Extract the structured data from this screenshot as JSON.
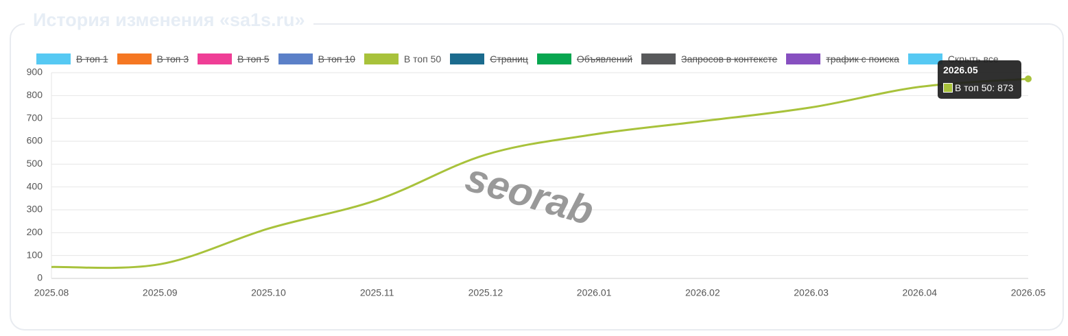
{
  "chart_data": {
    "type": "line",
    "title": "История изменения «sa1s.ru»",
    "categories": [
      "2025.08",
      "2025.09",
      "2025.10",
      "2025.11",
      "2025.12",
      "2026.01",
      "2026.02",
      "2026.03",
      "2026.04",
      "2026.05"
    ],
    "series": [
      {
        "name": "В топ 1",
        "color": "#56c9f3",
        "visible": false
      },
      {
        "name": "В топ 3",
        "color": "#f57722",
        "visible": false
      },
      {
        "name": "В топ 5",
        "color": "#ef3e96",
        "visible": false
      },
      {
        "name": "В топ 10",
        "color": "#5b80c8",
        "visible": false
      },
      {
        "name": "В топ 50",
        "color": "#a8c23b",
        "visible": true,
        "values": [
          50,
          62,
          218,
          343,
          541,
          630,
          688,
          748,
          838,
          873
        ]
      },
      {
        "name": "Страниц",
        "color": "#1b6b8e",
        "visible": false
      },
      {
        "name": "Объявлений",
        "color": "#08a650",
        "visible": false
      },
      {
        "name": "Запросов в контексте",
        "color": "#58595b",
        "visible": false
      },
      {
        "name": "трафик с поиска",
        "color": "#8750c0",
        "visible": false
      }
    ],
    "hide_all": {
      "label": "Скрыть все",
      "color": "#56c9f3"
    },
    "ylim": [
      0,
      900
    ],
    "yticks": [
      0,
      100,
      200,
      300,
      400,
      500,
      600,
      700,
      800,
      900
    ],
    "grid": true,
    "watermark": "seorab",
    "tooltip": {
      "title": "2026.05",
      "text": "В топ 50: 873"
    }
  }
}
